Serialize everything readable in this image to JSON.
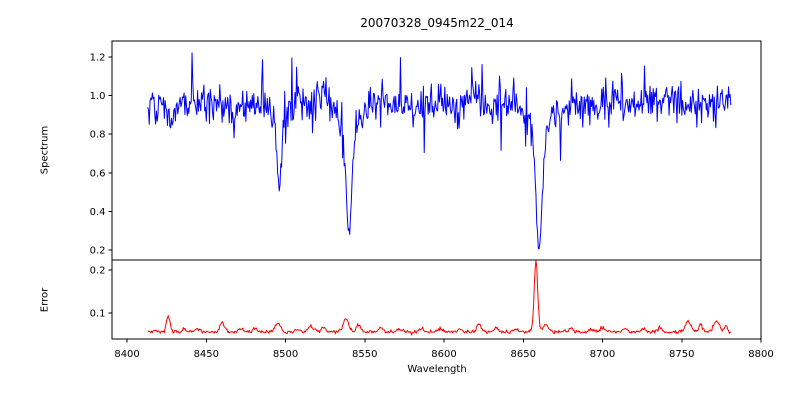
{
  "figure": {
    "background_color": "#ffffff",
    "axis_color": "#000000"
  },
  "chart_data": {
    "type": "line",
    "title": "20070328_0945m22_014",
    "xlabel": "Wavelength",
    "xlim": [
      8390.5,
      8800
    ],
    "x_ticks": {
      "values": [
        8400,
        8450,
        8500,
        8550,
        8600,
        8650,
        8700,
        8750,
        8800
      ],
      "labels": [
        "8400",
        "8450",
        "8500",
        "8550",
        "8600",
        "8650",
        "8700",
        "8750",
        "8800"
      ]
    },
    "grid": false,
    "legend": "none",
    "data_x_range": [
      8413,
      8781
    ],
    "panels": [
      {
        "name": "spectrum",
        "ylabel": "Spectrum",
        "ylim": [
          0.148,
          1.283
        ],
        "y_ticks": {
          "values": [
            0.2,
            0.4,
            0.6,
            0.8,
            1.0,
            1.2
          ],
          "labels": [
            "0.2",
            "0.4",
            "0.6",
            "0.8",
            "1.0",
            "1.2"
          ]
        },
        "line_color": "#0000ff",
        "series": {
          "x_start": 8413,
          "x_end": 8781,
          "x_step": 0.5,
          "continuum": 0.96,
          "noise_sigma": 0.05,
          "spike_probability": 0.025,
          "spike_min": 0.08,
          "spike_max": 0.28,
          "absorption_lines": [
            {
              "center": 8428,
              "depth": 0.08,
              "sigma": 1.2,
              "wing_depth": 0.0,
              "wing_sigma": 1.0
            },
            {
              "center": 8467,
              "depth": 0.1,
              "sigma": 1.0,
              "wing_depth": 0.0,
              "wing_sigma": 1.0
            },
            {
              "center": 8496,
              "depth": 0.35,
              "sigma": 1.3,
              "wing_depth": 0.1,
              "wing_sigma": 4.0
            },
            {
              "center": 8540,
              "depth": 0.54,
              "sigma": 1.7,
              "wing_depth": 0.14,
              "wing_sigma": 6.0
            },
            {
              "center": 8660,
              "depth": 0.58,
              "sigma": 1.9,
              "wing_depth": 0.16,
              "wing_sigma": 7.0
            }
          ],
          "core_minima": [
            {
              "center": 8496,
              "min_value": 0.51
            },
            {
              "center": 8540,
              "min_value": 0.28
            },
            {
              "center": 8660,
              "min_value": 0.22
            }
          ]
        }
      },
      {
        "name": "error",
        "ylabel": "Error",
        "ylim": [
          0.0395,
          0.2233
        ],
        "y_ticks": {
          "values": [
            0.1,
            0.2
          ],
          "labels": [
            "0.1",
            "0.2"
          ]
        },
        "line_color": "#ff0000",
        "series": {
          "x_start": 8413,
          "x_end": 8781,
          "x_step": 0.5,
          "baseline": 0.055,
          "noise_sigma": 0.002,
          "peaks": [
            {
              "center": 8418,
              "height": 0.005,
              "sigma": 1.0
            },
            {
              "center": 8426,
              "height": 0.036,
              "sigma": 1.2
            },
            {
              "center": 8436,
              "height": 0.008,
              "sigma": 1.2
            },
            {
              "center": 8445,
              "height": 0.007,
              "sigma": 1.5
            },
            {
              "center": 8460,
              "height": 0.022,
              "sigma": 1.3
            },
            {
              "center": 8472,
              "height": 0.006,
              "sigma": 1.5
            },
            {
              "center": 8481,
              "height": 0.008,
              "sigma": 1.2
            },
            {
              "center": 8495,
              "height": 0.02,
              "sigma": 1.8
            },
            {
              "center": 8508,
              "height": 0.007,
              "sigma": 1.5
            },
            {
              "center": 8516,
              "height": 0.013,
              "sigma": 1.8
            },
            {
              "center": 8524,
              "height": 0.011,
              "sigma": 1.4
            },
            {
              "center": 8538,
              "height": 0.032,
              "sigma": 1.7
            },
            {
              "center": 8546,
              "height": 0.014,
              "sigma": 1.4
            },
            {
              "center": 8560,
              "height": 0.012,
              "sigma": 1.2
            },
            {
              "center": 8572,
              "height": 0.006,
              "sigma": 1.5
            },
            {
              "center": 8585,
              "height": 0.007,
              "sigma": 1.6
            },
            {
              "center": 8598,
              "height": 0.008,
              "sigma": 1.4
            },
            {
              "center": 8610,
              "height": 0.007,
              "sigma": 1.4
            },
            {
              "center": 8622,
              "height": 0.02,
              "sigma": 1.3
            },
            {
              "center": 8633,
              "height": 0.01,
              "sigma": 1.4
            },
            {
              "center": 8645,
              "height": 0.007,
              "sigma": 1.4
            },
            {
              "center": 8658,
              "height": 0.165,
              "sigma": 1.1
            },
            {
              "center": 8664,
              "height": 0.018,
              "sigma": 1.6
            },
            {
              "center": 8680,
              "height": 0.008,
              "sigma": 1.4
            },
            {
              "center": 8692,
              "height": 0.006,
              "sigma": 1.4
            },
            {
              "center": 8700,
              "height": 0.01,
              "sigma": 1.4
            },
            {
              "center": 8714,
              "height": 0.008,
              "sigma": 1.4
            },
            {
              "center": 8726,
              "height": 0.007,
              "sigma": 1.4
            },
            {
              "center": 8736,
              "height": 0.009,
              "sigma": 1.4
            },
            {
              "center": 8754,
              "height": 0.024,
              "sigma": 1.8
            },
            {
              "center": 8762,
              "height": 0.016,
              "sigma": 1.2
            },
            {
              "center": 8772,
              "height": 0.026,
              "sigma": 1.8
            },
            {
              "center": 8778,
              "height": 0.012,
              "sigma": 1.0
            }
          ]
        }
      }
    ]
  }
}
